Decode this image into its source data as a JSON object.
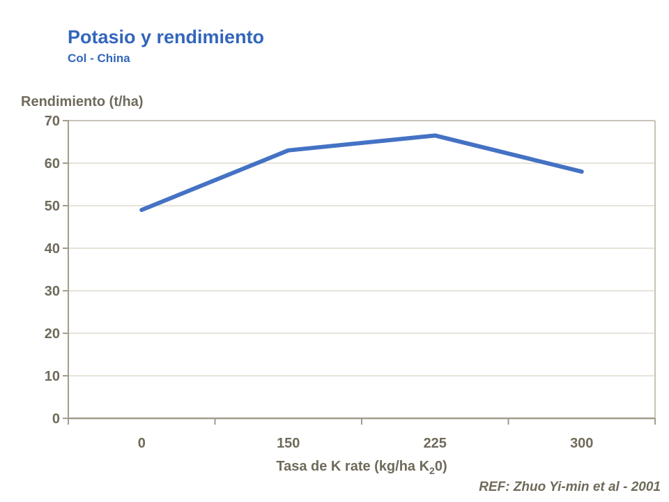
{
  "page": {
    "title": "Potasio y rendimiento",
    "subtitle": "Col - China",
    "ref_note": "REF: Zhuo Yi-min et al - 2001"
  },
  "colors": {
    "title_blue": "#3366BB",
    "line_blue": "#4472C4",
    "axis_text": "#6F6A5A",
    "axis_line": "#A29C8C",
    "plot_border": "#C8C4B8",
    "gridline": "#DEDACE",
    "background": "#FFFFFF"
  },
  "chart_data": {
    "type": "line",
    "title": "Potasio y rendimiento",
    "subtitle": "Col - China",
    "categories": [
      "0",
      "150",
      "225",
      "300"
    ],
    "series": [
      {
        "name": "Rendimiento",
        "values": [
          49,
          63,
          66.5,
          58
        ]
      }
    ],
    "xlabel": "Tasa de K rate (kg/ha K20)",
    "xlabel_parts": {
      "prefix": "Tasa de K rate (kg/ha K",
      "subscript": "2",
      "suffix": "0)"
    },
    "ylabel": "Rendimiento (t/ha)",
    "ylim": [
      0,
      70
    ],
    "yticks": [
      0,
      10,
      20,
      30,
      40,
      50,
      60,
      70
    ],
    "grid": "horizontal",
    "legend": "none",
    "line_width": 6,
    "source": "REF: Zhuo Yi-min et al - 2001"
  }
}
